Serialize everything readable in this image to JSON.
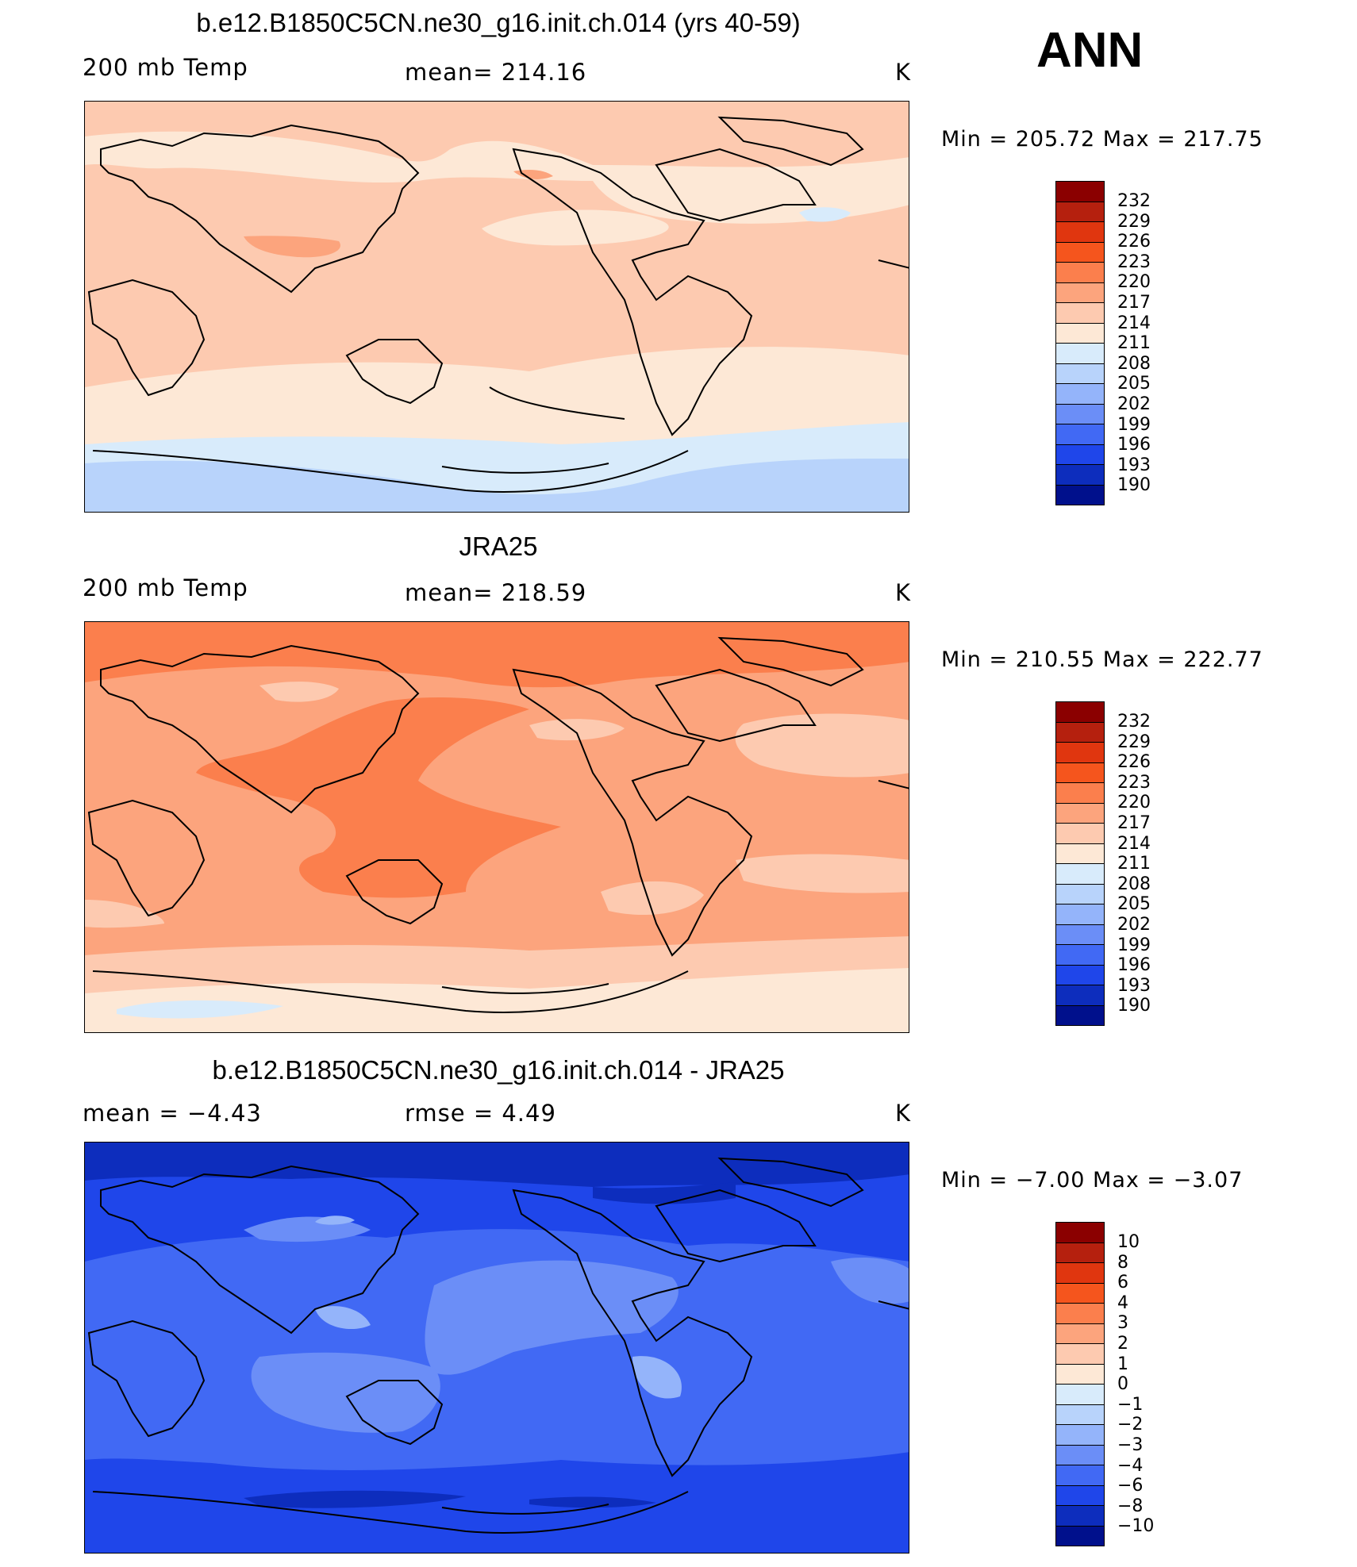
{
  "season": "ANN",
  "colors": [
    "#8b0000",
    "#b5200e",
    "#e0360f",
    "#f5551d",
    "#fb7f4d",
    "#fca47d",
    "#fdcab0",
    "#fde8d6",
    "#d8ebfb",
    "#b8d3fb",
    "#94b4fa",
    "#6b8ef7",
    "#4169f4",
    "#1f46ea",
    "#0d2dbd",
    "#00108c"
  ],
  "panels": [
    {
      "title": "b.e12.B1850C5CN.ne30_g16.init.ch.014 (yrs 40-59)",
      "left_label": "200 mb Temp",
      "center_label": "mean=  214.16",
      "right_label": "K",
      "minmax": "Min  =  205.72  Max  =  217.75",
      "levels": [
        "232",
        "229",
        "226",
        "223",
        "220",
        "217",
        "214",
        "211",
        "208",
        "205",
        "202",
        "199",
        "196",
        "193",
        "190"
      ]
    },
    {
      "title": "JRA25",
      "left_label": "200 mb Temp",
      "center_label": "mean=  218.59",
      "right_label": "K",
      "minmax": "Min  =  210.55  Max  =  222.77",
      "levels": [
        "232",
        "229",
        "226",
        "223",
        "220",
        "217",
        "214",
        "211",
        "208",
        "205",
        "202",
        "199",
        "196",
        "193",
        "190"
      ]
    },
    {
      "title": "b.e12.B1850C5CN.ne30_g16.init.ch.014 - JRA25",
      "left_label": "mean  =     −4.43",
      "center_label": "rmse  =     4.49",
      "right_label": "K",
      "minmax": "Min  =    −7.00  Max  =    −3.07",
      "levels": [
        "10",
        "8",
        "6",
        "4",
        "3",
        "2",
        "1",
        "0",
        "−1",
        "−2",
        "−3",
        "−4",
        "−6",
        "−8",
        "−10"
      ]
    }
  ]
}
